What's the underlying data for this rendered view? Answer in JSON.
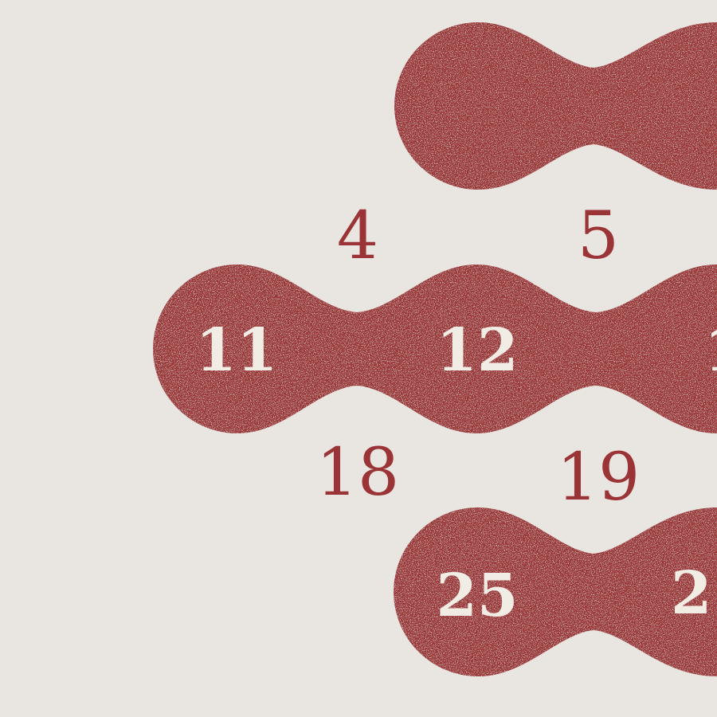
{
  "colors": {
    "background": "#e9e5e0",
    "accent_red": "#9a3436",
    "cream_text": "#f1ece4"
  },
  "calendar": {
    "plain_days": {
      "d4": "4",
      "d5": "5",
      "d18": "18",
      "d19": "19"
    },
    "highlighted_days": {
      "d11": "11",
      "d12": "12",
      "d13_partial": "1",
      "d25": "25",
      "d26_partial": "2"
    }
  }
}
